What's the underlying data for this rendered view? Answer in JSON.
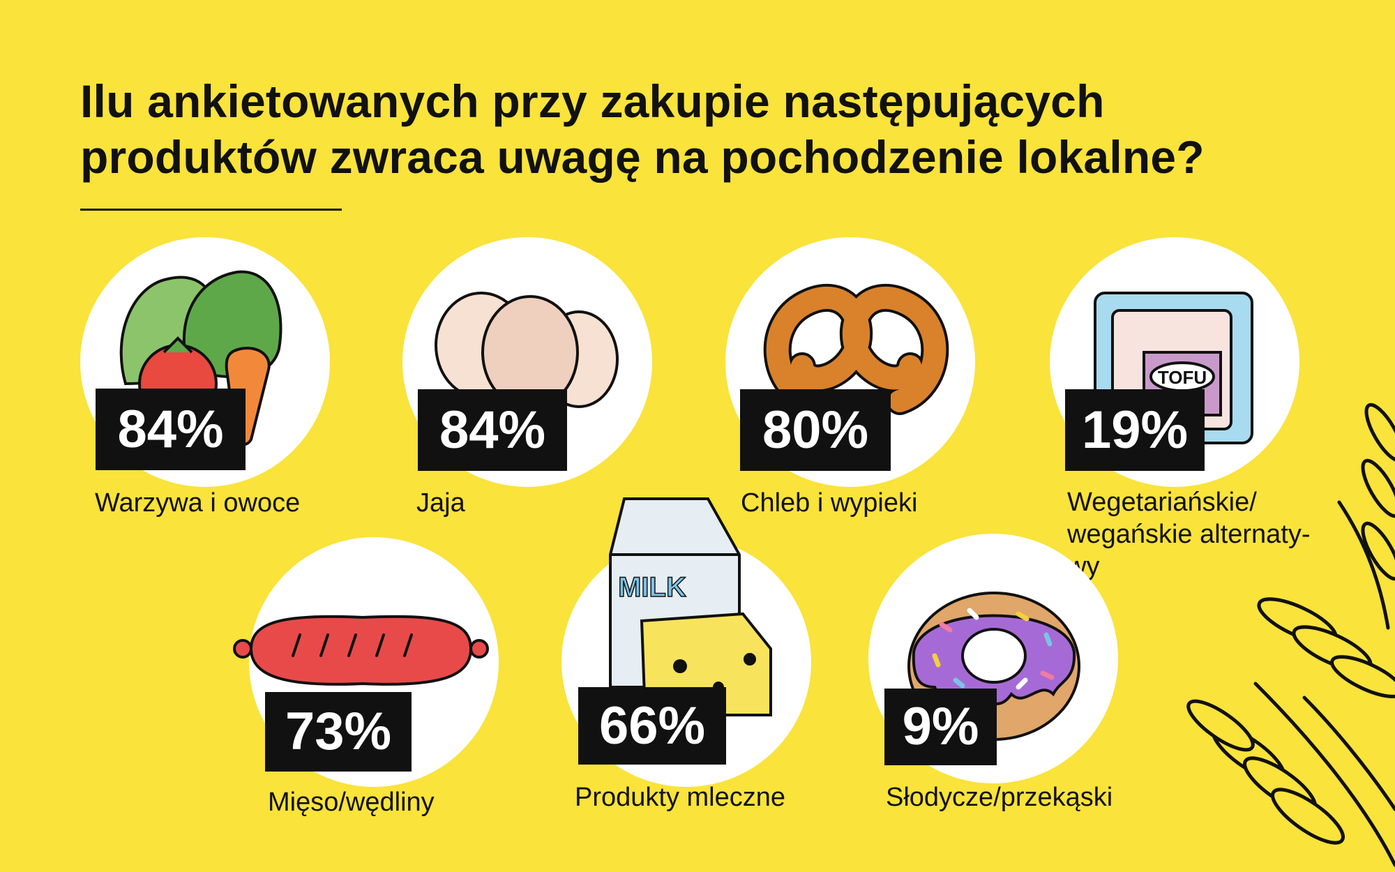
{
  "title_line1": "Ilu ankietowanych przy zakupie następujących",
  "title_line2": "produktów zwraca uwagę na pochodzenie lokalne?",
  "colors": {
    "background": "#fae33a",
    "badge": "#111111",
    "badge_text": "#ffffff",
    "circle": "#ffffff"
  },
  "chart_data": {
    "type": "bar",
    "title": "Ilu ankietowanych przy zakupie następujących produktów zwraca uwagę na pochodzenie lokalne?",
    "unit": "%",
    "categories": [
      "Warzywa i owoce",
      "Jaja",
      "Chleb i wypieki",
      "Wegetariańskie/ wegańskie alternaty- wy",
      "Mięso/wędliny",
      "Produkty mleczne",
      "Słodycze/przekąski"
    ],
    "values": [
      84,
      84,
      80,
      19,
      73,
      66,
      9
    ],
    "value_labels": [
      "84%",
      "84%",
      "80%",
      "19%",
      "73%",
      "66%",
      "9%"
    ],
    "icons": [
      "vegetables-icon",
      "eggs-icon",
      "pretzel-icon",
      "tofu-icon",
      "sausage-icon",
      "milk-cheese-icon",
      "donut-icon"
    ],
    "label_lines": [
      [
        "Warzywa i owoce"
      ],
      [
        "Jaja"
      ],
      [
        "Chleb i wypieki"
      ],
      [
        "Wegetariańskie/",
        "wegańskie alternaty-",
        "wy"
      ],
      [
        "Mięso/wędliny"
      ],
      [
        "Produkty mleczne"
      ],
      [
        "Słodycze/przekąski"
      ]
    ]
  }
}
